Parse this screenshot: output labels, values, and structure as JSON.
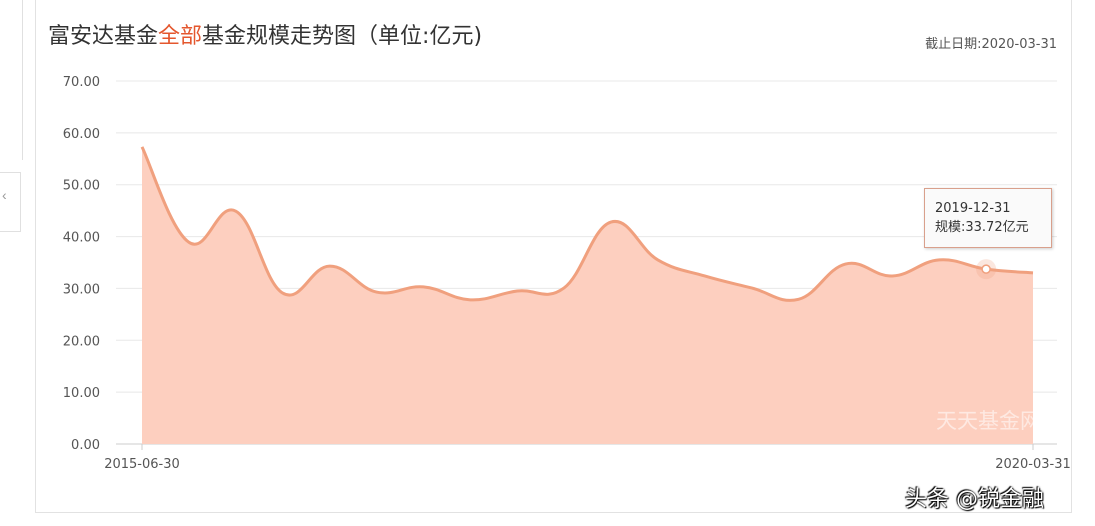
{
  "title": {
    "prefix": "富安达基金",
    "highlight": "全部",
    "suffix": "基金规模走势图（单位:亿元)"
  },
  "cutoff_date": "截止日期:2020-03-31",
  "left_tab": {
    "icon": "chevron-left-icon",
    "glyph": "‹"
  },
  "tooltip": {
    "date": "2019-12-31",
    "value": "规模:33.72亿元"
  },
  "watermark": "天天基金网",
  "credit": "头条 @锐金融",
  "colors": {
    "line": "#f0a07e",
    "fill": "#fdcfbf",
    "highlight": "#e4572e"
  },
  "chart_data": {
    "type": "area",
    "x": [
      "2015-06-30",
      "2015-09-30",
      "2015-12-31",
      "2016-03-31",
      "2016-06-30",
      "2016-09-30",
      "2016-12-31",
      "2017-03-31",
      "2017-06-30",
      "2017-09-30",
      "2017-12-31",
      "2018-03-31",
      "2018-06-30",
      "2018-09-30",
      "2018-12-31",
      "2019-03-31",
      "2019-06-30",
      "2019-09-30",
      "2019-12-31",
      "2020-03-31"
    ],
    "values": [
      57.3,
      38.9,
      44.9,
      29.1,
      34.3,
      29.3,
      30.3,
      27.8,
      29.5,
      30.1,
      42.8,
      35.5,
      32.4,
      30.1,
      27.9,
      34.7,
      32.4,
      35.5,
      33.72,
      33.0
    ],
    "x_tick_labels": [
      "2015-06-30",
      "2020-03-31"
    ],
    "y_tick_labels": [
      "0.00",
      "10.00",
      "20.00",
      "30.00",
      "40.00",
      "50.00",
      "60.00",
      "70.00"
    ],
    "ylim": [
      0,
      70
    ],
    "grid": true,
    "smooth": true
  }
}
